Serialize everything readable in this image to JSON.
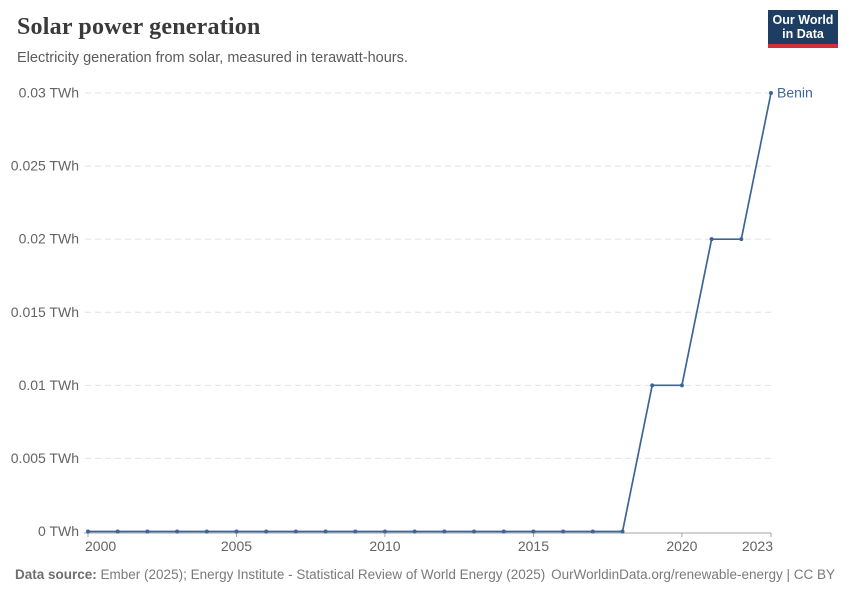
{
  "header": {
    "title": "Solar power generation",
    "subtitle": "Electricity generation from solar, measured in terawatt-hours."
  },
  "logo": {
    "line1": "Our World",
    "line2": "in Data",
    "bg_color": "#1d3d63",
    "accent_color": "#cf303e"
  },
  "chart_data": {
    "type": "line",
    "title": "Solar power generation",
    "ylabel": "",
    "xlabel": "",
    "unit": "TWh",
    "grid": "horizontal-dashed",
    "xlim": [
      2000,
      2023
    ],
    "ylim": [
      0,
      0.03
    ],
    "x": [
      2000,
      2001,
      2002,
      2003,
      2004,
      2005,
      2006,
      2007,
      2008,
      2009,
      2010,
      2011,
      2012,
      2013,
      2014,
      2015,
      2016,
      2017,
      2018,
      2019,
      2020,
      2021,
      2022,
      2023
    ],
    "series": [
      {
        "name": "Benin",
        "color": "#3e6596",
        "values": [
          0,
          0,
          0,
          0,
          0,
          0,
          0,
          0,
          0,
          0,
          0,
          0,
          0,
          0,
          0,
          0,
          0,
          0,
          0,
          0.01,
          0.01,
          0.02,
          0.02,
          0.03
        ]
      }
    ],
    "y_ticks": [
      {
        "value": 0,
        "label": "0 TWh"
      },
      {
        "value": 0.005,
        "label": "0.005 TWh"
      },
      {
        "value": 0.01,
        "label": "0.01 TWh"
      },
      {
        "value": 0.015,
        "label": "0.015 TWh"
      },
      {
        "value": 0.02,
        "label": "0.02 TWh"
      },
      {
        "value": 0.025,
        "label": "0.025 TWh"
      },
      {
        "value": 0.03,
        "label": "0.03 TWh"
      }
    ],
    "x_ticks": [
      2000,
      2005,
      2010,
      2015,
      2020,
      2023
    ],
    "end_label": "Benin",
    "colors": {
      "gridline": "#e2e2e2",
      "axis": "#a5a5a5",
      "tick_label": "#636363"
    }
  },
  "footer": {
    "source_label": "Data source:",
    "source_text": " Ember (2025); Energy Institute - Statistical Review of World Energy (2025)",
    "link_text": "OurWorldinData.org/renewable-energy | CC BY"
  }
}
